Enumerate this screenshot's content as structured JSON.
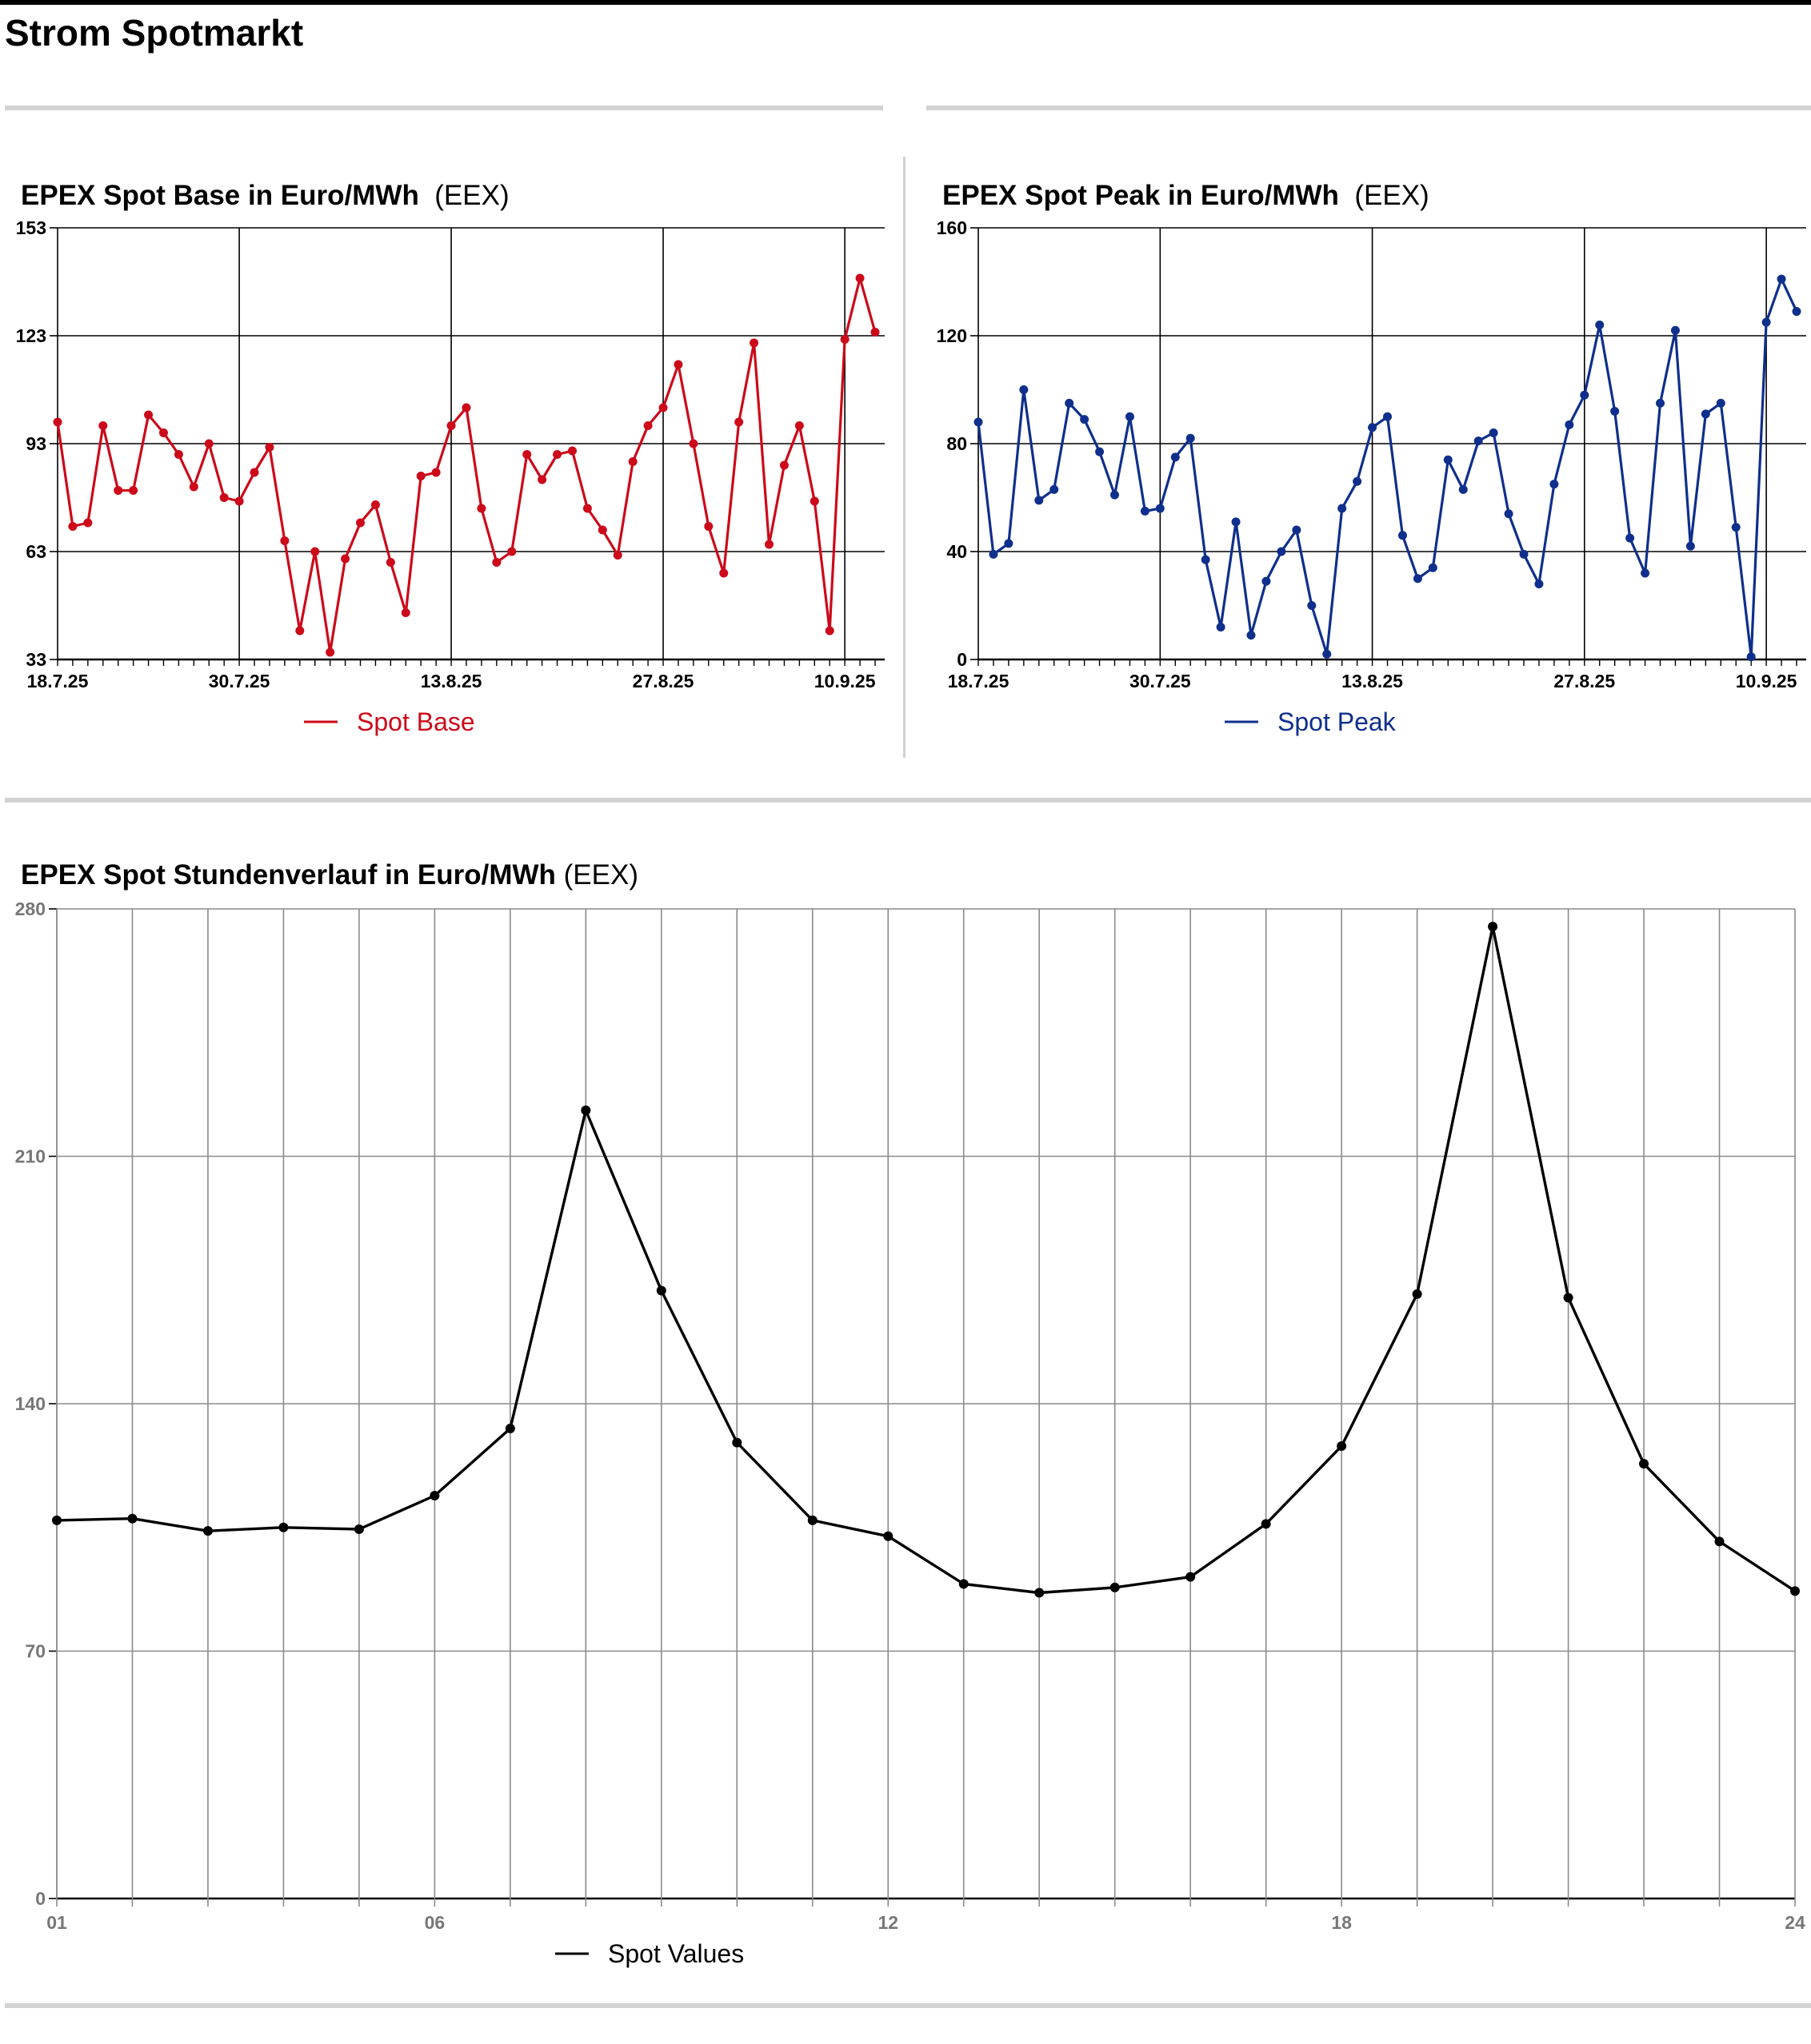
{
  "page": {
    "title": "Strom Spotmarkt"
  },
  "colors": {
    "base": "#cc0a1a",
    "peak": "#0f2f8c",
    "hourly": "#000000"
  },
  "chart_data": [
    {
      "id": "base",
      "type": "line",
      "title": "EPEX Spot Base in Euro/MWh",
      "source": "(EEX)",
      "ylim": [
        33,
        153
      ],
      "yticks": [
        "153",
        "123",
        "93",
        "63",
        "33"
      ],
      "xticks": [
        "18.7.25",
        "30.7.25",
        "13.8.25",
        "27.8.25",
        "10.9.25"
      ],
      "xtick_index": [
        0,
        12,
        26,
        40,
        52
      ],
      "grid": true,
      "legend": "bottom-center",
      "series": [
        {
          "name": "Spot Base",
          "values": [
            99,
            70,
            71,
            98,
            80,
            80,
            101,
            96,
            90,
            81,
            93,
            78,
            77,
            85,
            92,
            66,
            41,
            63,
            35,
            61,
            71,
            76,
            60,
            46,
            84,
            85,
            98,
            103,
            75,
            60,
            63,
            90,
            83,
            90,
            91,
            75,
            69,
            62,
            88,
            98,
            103,
            115,
            93,
            70,
            57,
            99,
            121,
            65,
            87,
            98,
            77,
            41,
            122,
            139,
            124
          ]
        }
      ]
    },
    {
      "id": "peak",
      "type": "line",
      "title": "EPEX Spot Peak in Euro/MWh",
      "source": "(EEX)",
      "ylim": [
        0,
        160
      ],
      "yticks": [
        "160",
        "120",
        "80",
        "40",
        "0"
      ],
      "xticks": [
        "18.7.25",
        "30.7.25",
        "13.8.25",
        "27.8.25",
        "10.9.25"
      ],
      "xtick_index": [
        0,
        12,
        26,
        40,
        52
      ],
      "grid": true,
      "legend": "bottom-center",
      "series": [
        {
          "name": "Spot Peak",
          "values": [
            88,
            39,
            43,
            100,
            59,
            63,
            95,
            89,
            77,
            61,
            90,
            55,
            56,
            75,
            82,
            37,
            12,
            51,
            9,
            29,
            40,
            48,
            20,
            2,
            56,
            66,
            86,
            90,
            46,
            30,
            34,
            74,
            63,
            81,
            84,
            54,
            39,
            28,
            65,
            87,
            98,
            124,
            92,
            45,
            32,
            95,
            122,
            42,
            91,
            95,
            49,
            1,
            125,
            141,
            129
          ]
        }
      ]
    },
    {
      "id": "hourly",
      "type": "line",
      "title": "EPEX Spot Stundenverlauf in Euro/MWh",
      "source": "(EEX)",
      "ylim": [
        0,
        280
      ],
      "yticks": [
        "280",
        "210",
        "140",
        "70",
        "0"
      ],
      "x": [
        "01",
        "02",
        "03",
        "04",
        "05",
        "06",
        "07",
        "08",
        "09",
        "10",
        "11",
        "12",
        "13",
        "14",
        "15",
        "16",
        "17",
        "18",
        "19",
        "20",
        "21",
        "22",
        "23",
        "24"
      ],
      "xticks": [
        "01",
        "06",
        "12",
        "18",
        "24"
      ],
      "grid": true,
      "legend": "bottom-center",
      "series": [
        {
          "name": "Spot Values",
          "values": [
            107,
            107.5,
            104,
            105,
            104.5,
            114,
            133,
            223,
            172,
            129,
            107,
            102.5,
            89,
            86.5,
            88,
            91,
            106,
            128,
            171,
            275,
            170,
            123,
            101,
            87
          ]
        }
      ]
    }
  ]
}
